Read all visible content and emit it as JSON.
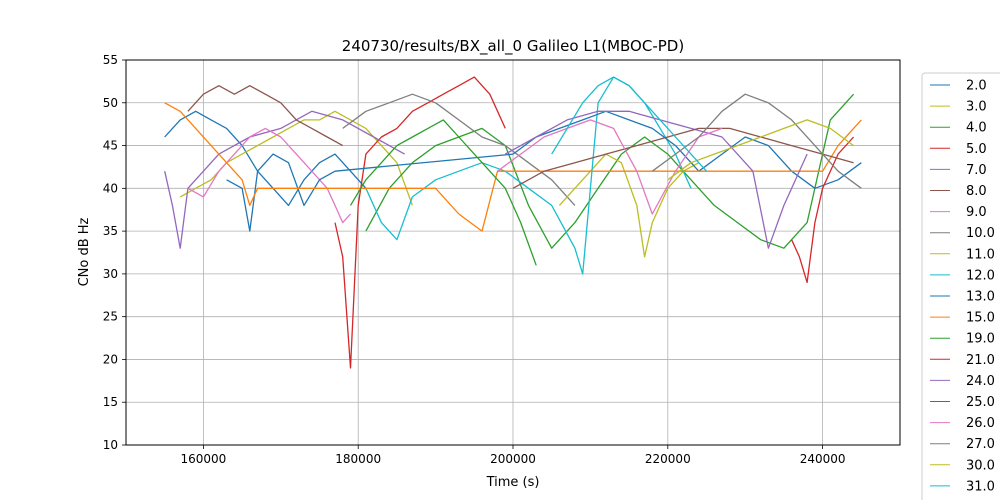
{
  "chart_data": {
    "type": "line",
    "title": "240730/results/BX_all_0 Galileo L1(MBOC-PD)",
    "xlabel": "Time (s)",
    "ylabel": "CNo dB Hz",
    "xlim": [
      150000,
      250000
    ],
    "ylim": [
      10,
      55
    ],
    "xticks": [
      160000,
      180000,
      200000,
      220000,
      240000
    ],
    "yticks": [
      10,
      15,
      20,
      25,
      30,
      35,
      40,
      45,
      50,
      55
    ],
    "grid": true,
    "legend_position": "right",
    "series": [
      {
        "name": "2.0",
        "color": "#1f77b4",
        "x": [
          155000,
          157000,
          159000,
          161000,
          163000,
          165000,
          167000,
          169000,
          171000,
          173000,
          175000,
          177000,
          179000,
          181000
        ],
        "y": [
          46,
          48,
          49,
          48,
          47,
          45,
          42,
          40,
          38,
          41,
          43,
          44,
          42,
          40
        ]
      },
      {
        "name": "3.0",
        "color": "#bcbd22",
        "x": [
          157000,
          159000,
          161000,
          163000,
          165000,
          167000,
          169000,
          171000,
          173000,
          175000,
          177000,
          179000,
          181000,
          183000,
          185000,
          187000
        ],
        "y": [
          39,
          40,
          41,
          43,
          44,
          45,
          46,
          47,
          48,
          48,
          49,
          48,
          47,
          45,
          43,
          38
        ]
      },
      {
        "name": "4.0",
        "color": "#2ca02c",
        "x": [
          181000,
          184000,
          187000,
          190000,
          193000,
          196000,
          199000,
          202000,
          205000,
          208000,
          211000,
          214000,
          217000,
          220000,
          223000,
          226000,
          229000,
          232000,
          235000,
          238000,
          241000,
          244000
        ],
        "y": [
          35,
          40,
          43,
          45,
          46,
          47,
          45,
          38,
          33,
          36,
          40,
          44,
          46,
          44,
          41,
          38,
          36,
          34,
          33,
          36,
          48,
          51
        ]
      },
      {
        "name": "5.0",
        "color": "#d62728",
        "x": [
          177000,
          178000,
          179000,
          180000,
          181000,
          183000,
          185000,
          187000,
          189000,
          191000,
          193000,
          195000,
          197000,
          199000
        ],
        "y": [
          36,
          32,
          19,
          38,
          44,
          46,
          47,
          49,
          50,
          51,
          52,
          53,
          51,
          47
        ]
      },
      {
        "name": "7.0",
        "color": "#9467bd",
        "x": [
          155000,
          156000,
          157000,
          158000,
          162000,
          166000,
          170000,
          174000,
          178000,
          182000,
          186000
        ],
        "y": [
          42,
          38,
          33,
          40,
          44,
          46,
          47,
          49,
          48,
          46,
          44
        ]
      },
      {
        "name": "8.0",
        "color": "#8c564b",
        "x": [
          158000,
          160000,
          162000,
          164000,
          166000,
          168000,
          170000,
          172000,
          174000,
          176000,
          178000
        ],
        "y": [
          49,
          51,
          52,
          51,
          52,
          51,
          50,
          48,
          47,
          46,
          45
        ]
      },
      {
        "name": "9.0",
        "color": "#e377c2",
        "x": [
          158000,
          160000,
          162000,
          164000,
          166000,
          168000,
          170000,
          172000,
          174000,
          176000,
          177000,
          178000,
          179000
        ],
        "y": [
          40,
          39,
          42,
          44,
          46,
          47,
          46,
          44,
          42,
          40,
          38,
          36,
          37
        ]
      },
      {
        "name": "10.0",
        "color": "#7f7f7f",
        "x": [
          178000,
          181000,
          184000,
          187000,
          190000,
          193000,
          196000,
          199000,
          202000,
          205000,
          208000
        ],
        "y": [
          47,
          49,
          50,
          51,
          50,
          48,
          46,
          45,
          43,
          41,
          38
        ]
      },
      {
        "name": "11.0",
        "color": "#bcbd22",
        "x": [
          206000,
          208000,
          210000,
          212000,
          214000,
          216000,
          217000,
          218000,
          220000,
          222000,
          224000
        ],
        "y": [
          38,
          40,
          42,
          44,
          43,
          38,
          32,
          36,
          40,
          42,
          43
        ]
      },
      {
        "name": "12.0",
        "color": "#17becf",
        "x": [
          181000,
          183000,
          185000,
          187000,
          190000,
          193000,
          196000,
          199000,
          202000,
          205000,
          208000,
          209000,
          211000,
          213000,
          215000,
          217000,
          219000,
          221000,
          223000
        ],
        "y": [
          40,
          36,
          34,
          39,
          41,
          42,
          43,
          42,
          40,
          38,
          33,
          30,
          50,
          53,
          52,
          50,
          47,
          44,
          40
        ]
      },
      {
        "name": "13.0",
        "color": "#1f77b4",
        "x": [
          163000,
          165000,
          166000,
          167000,
          169000,
          171000,
          173000,
          175000,
          177000,
          200000,
          203000,
          206000,
          209000,
          212000,
          215000,
          218000,
          221000,
          224000,
          227000,
          230000,
          233000,
          236000,
          239000,
          242000,
          245000
        ],
        "y": [
          41,
          40,
          35,
          42,
          44,
          43,
          38,
          41,
          42,
          44,
          46,
          47,
          48,
          49,
          48,
          47,
          45,
          42,
          44,
          46,
          45,
          42,
          40,
          41,
          43
        ]
      },
      {
        "name": "15.0",
        "color": "#ff7f0e",
        "x": [
          155000,
          157000,
          159000,
          161000,
          163000,
          165000,
          166000,
          167000,
          190000,
          193000,
          196000,
          198000,
          240000,
          242000,
          244000,
          245000
        ],
        "y": [
          50,
          49,
          47,
          45,
          43,
          41,
          38,
          40,
          40,
          37,
          35,
          42,
          42,
          45,
          47,
          48
        ]
      },
      {
        "name": "19.0",
        "color": "#2ca02c",
        "x": [
          179000,
          181000,
          183000,
          185000,
          187000,
          189000,
          191000,
          193000,
          195000,
          197000,
          199000,
          201000,
          203000
        ],
        "y": [
          38,
          41,
          43,
          45,
          46,
          47,
          48,
          46,
          44,
          42,
          40,
          36,
          31
        ]
      },
      {
        "name": "21.0",
        "color": "#d62728",
        "x": [
          236000,
          237000,
          238000,
          239000,
          240000,
          242000,
          244000
        ],
        "y": [
          34,
          32,
          29,
          36,
          40,
          44,
          46
        ]
      },
      {
        "name": "24.0",
        "color": "#9467bd",
        "x": [
          199000,
          203000,
          207000,
          211000,
          215000,
          219000,
          223000,
          227000,
          231000,
          233000,
          235000,
          238000
        ],
        "y": [
          44,
          46,
          48,
          49,
          49,
          48,
          47,
          46,
          42,
          33,
          38,
          44
        ]
      },
      {
        "name": "25.0",
        "color": "#8c564b",
        "x": [
          200000,
          204000,
          208000,
          212000,
          216000,
          220000,
          224000,
          228000,
          232000,
          236000,
          240000,
          244000
        ],
        "y": [
          40,
          42,
          43,
          44,
          45,
          46,
          47,
          47,
          46,
          45,
          44,
          43
        ]
      },
      {
        "name": "26.0",
        "color": "#e377c2",
        "x": [
          198000,
          201000,
          204000,
          207000,
          210000,
          213000,
          216000,
          218000,
          221000,
          224000,
          227000
        ],
        "y": [
          42,
          44,
          46,
          47,
          48,
          47,
          42,
          37,
          42,
          46,
          47
        ]
      },
      {
        "name": "27.0",
        "color": "#7f7f7f",
        "x": [
          218000,
          221000,
          224000,
          227000,
          230000,
          233000,
          236000,
          239000,
          242000,
          245000
        ],
        "y": [
          42,
          44,
          46,
          49,
          51,
          50,
          48,
          45,
          42,
          40
        ]
      },
      {
        "name": "30.0",
        "color": "#bcbd22",
        "x": [
          220000,
          223000,
          226000,
          229000,
          232000,
          235000,
          238000,
          241000,
          244000
        ],
        "y": [
          41,
          43,
          44,
          45,
          46,
          47,
          48,
          47,
          45
        ]
      },
      {
        "name": "31.0",
        "color": "#17becf",
        "x": [
          205000,
          207000,
          209000,
          211000,
          213000,
          215000,
          217000,
          219000,
          221000,
          223000,
          225000
        ],
        "y": [
          44,
          47,
          50,
          52,
          53,
          52,
          50,
          48,
          46,
          44,
          42
        ]
      }
    ]
  }
}
